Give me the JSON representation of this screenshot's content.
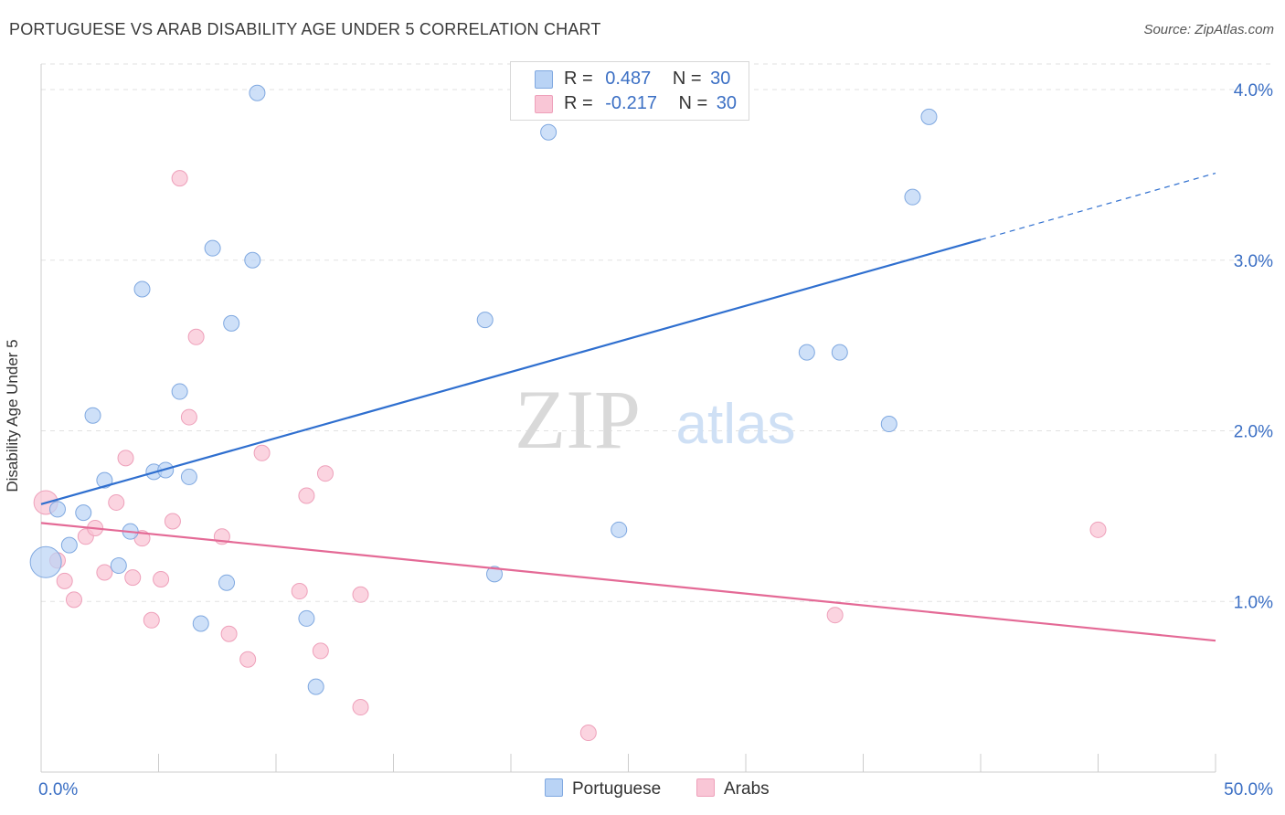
{
  "header": {
    "title": "PORTUGUESE VS ARAB DISABILITY AGE UNDER 5 CORRELATION CHART",
    "source": "Source: ZipAtlas.com"
  },
  "watermark": {
    "zip": "ZIP",
    "atlas": "atlas"
  },
  "legend_top": {
    "rows": [
      {
        "r_label": "R =",
        "r_value": "0.487",
        "n_label": "N =",
        "n_value": "30"
      },
      {
        "r_label": "R =",
        "r_value": "-0.217",
        "n_label": "N =",
        "n_value": "30"
      }
    ]
  },
  "colors": {
    "blue_fill": "#b9d3f5",
    "blue_stroke": "#7fa8e0",
    "blue_line": "#2f6fcf",
    "pink_fill": "#f9c6d6",
    "pink_stroke": "#eea0ba",
    "pink_line": "#e46a96",
    "tick_text": "#3b6fc4",
    "grid": "#e2e2e2"
  },
  "chart_data": {
    "type": "scatter",
    "title": "PORTUGUESE VS ARAB DISABILITY AGE UNDER 5 CORRELATION CHART",
    "ylabel": "Disability Age Under 5",
    "xlabel": "",
    "xlim": [
      0,
      50
    ],
    "ylim": [
      0,
      4.15
    ],
    "x_tick_labels": [
      "0.0%",
      "50.0%"
    ],
    "y_ticks": [
      1.0,
      2.0,
      3.0,
      4.0
    ],
    "y_tick_labels": [
      "1.0%",
      "2.0%",
      "3.0%",
      "4.0%"
    ],
    "grid": true,
    "legend_position": "bottom",
    "series": [
      {
        "name": "Portuguese",
        "points": [
          [
            0.2,
            1.23
          ],
          [
            0.7,
            1.54
          ],
          [
            1.2,
            1.33
          ],
          [
            1.8,
            1.52
          ],
          [
            2.2,
            2.09
          ],
          [
            2.7,
            1.71
          ],
          [
            3.3,
            1.21
          ],
          [
            3.8,
            1.41
          ],
          [
            4.3,
            2.83
          ],
          [
            4.8,
            1.76
          ],
          [
            5.3,
            1.77
          ],
          [
            5.9,
            2.23
          ],
          [
            6.3,
            1.73
          ],
          [
            6.8,
            0.87
          ],
          [
            7.3,
            3.07
          ],
          [
            7.9,
            1.11
          ],
          [
            8.1,
            2.63
          ],
          [
            9.2,
            3.98
          ],
          [
            11.3,
            0.9
          ],
          [
            11.7,
            0.5
          ],
          [
            18.9,
            2.65
          ],
          [
            19.3,
            1.16
          ],
          [
            21.6,
            3.75
          ],
          [
            24.6,
            1.42
          ],
          [
            32.6,
            2.46
          ],
          [
            34.0,
            2.46
          ],
          [
            36.1,
            2.04
          ],
          [
            37.1,
            3.37
          ],
          [
            37.8,
            3.84
          ],
          [
            9.0,
            3.0
          ]
        ],
        "trend": {
          "x0": 0,
          "y0": 1.57,
          "x1": 40,
          "y1": 3.12,
          "dash_to_x": 50,
          "dash_to_y": 3.51
        }
      },
      {
        "name": "Arabs",
        "points": [
          [
            0.2,
            1.58
          ],
          [
            0.7,
            1.24
          ],
          [
            1.0,
            1.12
          ],
          [
            1.4,
            1.01
          ],
          [
            1.9,
            1.38
          ],
          [
            2.3,
            1.43
          ],
          [
            2.7,
            1.17
          ],
          [
            3.2,
            1.58
          ],
          [
            3.6,
            1.84
          ],
          [
            3.9,
            1.14
          ],
          [
            4.3,
            1.37
          ],
          [
            4.7,
            0.89
          ],
          [
            5.1,
            1.13
          ],
          [
            5.6,
            1.47
          ],
          [
            5.9,
            3.48
          ],
          [
            6.3,
            2.08
          ],
          [
            6.6,
            2.55
          ],
          [
            7.7,
            1.38
          ],
          [
            8.0,
            0.81
          ],
          [
            8.8,
            0.66
          ],
          [
            9.4,
            1.87
          ],
          [
            11.0,
            1.06
          ],
          [
            11.3,
            1.62
          ],
          [
            11.9,
            0.71
          ],
          [
            12.1,
            1.75
          ],
          [
            13.6,
            1.04
          ],
          [
            13.6,
            0.38
          ],
          [
            23.3,
            0.23
          ],
          [
            33.8,
            0.92
          ],
          [
            45.0,
            1.42
          ]
        ],
        "trend": {
          "x0": 0,
          "y0": 1.46,
          "x1": 50,
          "y1": 0.77
        }
      }
    ]
  },
  "bottom_legend": {
    "portuguese": "Portuguese",
    "arabs": "Arabs"
  }
}
